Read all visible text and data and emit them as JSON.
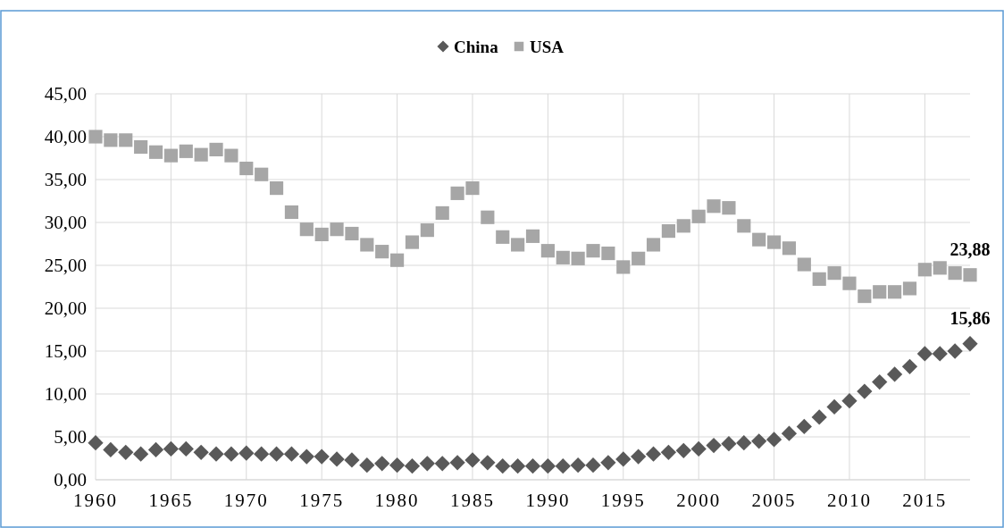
{
  "chart_data": {
    "type": "scatter",
    "x": [
      1960,
      1961,
      1962,
      1963,
      1964,
      1965,
      1966,
      1967,
      1968,
      1969,
      1970,
      1971,
      1972,
      1973,
      1974,
      1975,
      1976,
      1977,
      1978,
      1979,
      1980,
      1981,
      1982,
      1983,
      1984,
      1985,
      1986,
      1987,
      1988,
      1989,
      1990,
      1991,
      1992,
      1993,
      1994,
      1995,
      1996,
      1997,
      1998,
      1999,
      2000,
      2001,
      2002,
      2003,
      2004,
      2005,
      2006,
      2007,
      2008,
      2009,
      2010,
      2011,
      2012,
      2013,
      2014,
      2015,
      2016,
      2017,
      2018
    ],
    "series": [
      {
        "name": "China",
        "color": "#595959",
        "marker": "diamond",
        "values": [
          4.3,
          3.5,
          3.2,
          3.0,
          3.5,
          3.6,
          3.6,
          3.2,
          3.0,
          3.0,
          3.1,
          3.0,
          3.0,
          3.0,
          2.7,
          2.7,
          2.4,
          2.3,
          1.7,
          1.9,
          1.7,
          1.6,
          1.9,
          1.9,
          2.0,
          2.3,
          2.0,
          1.6,
          1.6,
          1.6,
          1.6,
          1.6,
          1.7,
          1.7,
          2.0,
          2.4,
          2.7,
          3.0,
          3.2,
          3.4,
          3.6,
          4.0,
          4.2,
          4.3,
          4.5,
          4.7,
          5.4,
          6.2,
          7.3,
          8.5,
          9.2,
          10.3,
          11.4,
          12.3,
          13.2,
          14.7,
          14.7,
          15.0,
          15.86
        ],
        "value_labels": [
          null,
          null,
          null,
          null,
          null,
          null,
          null,
          null,
          null,
          null,
          null,
          null,
          null,
          null,
          null,
          null,
          null,
          null,
          null,
          null,
          null,
          null,
          null,
          null,
          null,
          null,
          null,
          null,
          null,
          null,
          null,
          null,
          null,
          null,
          null,
          null,
          null,
          null,
          null,
          null,
          null,
          null,
          null,
          null,
          null,
          null,
          null,
          null,
          null,
          null,
          null,
          null,
          null,
          null,
          null,
          null,
          null,
          null,
          "15,86"
        ]
      },
      {
        "name": "USA",
        "color": "#a6a6a6",
        "marker": "square",
        "values": [
          40.0,
          39.6,
          39.6,
          38.8,
          38.2,
          37.8,
          38.3,
          37.9,
          38.5,
          37.8,
          36.3,
          35.6,
          34.0,
          31.2,
          29.2,
          28.6,
          29.2,
          28.7,
          27.4,
          26.6,
          25.6,
          27.7,
          29.1,
          31.1,
          33.4,
          34.0,
          30.6,
          28.3,
          27.4,
          28.4,
          26.7,
          25.9,
          25.8,
          26.7,
          26.4,
          24.8,
          25.8,
          27.4,
          29.0,
          29.6,
          30.7,
          31.9,
          31.7,
          29.6,
          28.0,
          27.7,
          27.0,
          25.1,
          23.4,
          24.1,
          22.9,
          21.4,
          21.9,
          21.9,
          22.3,
          24.5,
          24.7,
          24.1,
          23.88
        ],
        "value_labels": [
          null,
          null,
          null,
          null,
          null,
          null,
          null,
          null,
          null,
          null,
          null,
          null,
          null,
          null,
          null,
          null,
          null,
          null,
          null,
          null,
          null,
          null,
          null,
          null,
          null,
          null,
          null,
          null,
          null,
          null,
          null,
          null,
          null,
          null,
          null,
          null,
          null,
          null,
          null,
          null,
          null,
          null,
          null,
          null,
          null,
          null,
          null,
          null,
          null,
          null,
          null,
          null,
          null,
          null,
          null,
          null,
          null,
          null,
          "23,88"
        ]
      }
    ],
    "xlim": [
      1960,
      2018
    ],
    "xticks": [
      1960,
      1965,
      1970,
      1975,
      1980,
      1985,
      1990,
      1995,
      2000,
      2005,
      2010,
      2015
    ],
    "ylim": [
      0,
      45
    ],
    "yticks": [
      {
        "value": 0,
        "label": "0,00"
      },
      {
        "value": 5,
        "label": "5,00"
      },
      {
        "value": 10,
        "label": "10,00"
      },
      {
        "value": 15,
        "label": "15,00"
      },
      {
        "value": 20,
        "label": "20,00"
      },
      {
        "value": 25,
        "label": "25,00"
      },
      {
        "value": 30,
        "label": "30,00"
      },
      {
        "value": 35,
        "label": "35,00"
      },
      {
        "value": 40,
        "label": "40,00"
      },
      {
        "value": 45,
        "label": "45,00"
      }
    ],
    "grid": true,
    "legend": "top"
  }
}
